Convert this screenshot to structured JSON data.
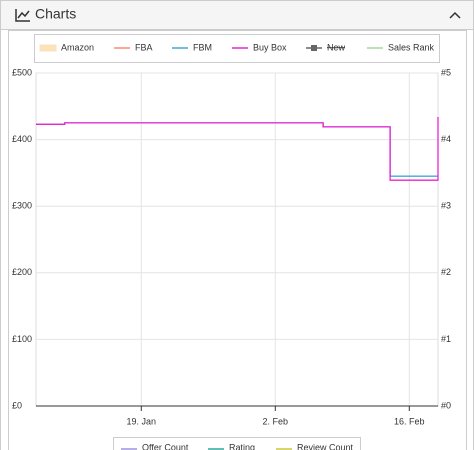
{
  "panel": {
    "title": "Charts"
  },
  "chart_data": {
    "type": "line",
    "step": true,
    "x": [
      "8. Jan",
      "11. Jan",
      "11. Jan",
      "7. Feb",
      "7. Feb",
      "14. Feb",
      "14. Feb",
      "19. Feb",
      "19. Feb"
    ],
    "xlim": [
      "8. Jan",
      "19. Feb"
    ],
    "xticks": [
      "19. Jan",
      "2. Feb",
      "16. Feb"
    ],
    "ylim": [
      0,
      500
    ],
    "yticks": [
      {
        "value": 0,
        "label": "£0"
      },
      {
        "value": 100,
        "label": "£100"
      },
      {
        "value": 200,
        "label": "£200"
      },
      {
        "value": 300,
        "label": "£300"
      },
      {
        "value": 400,
        "label": "£400"
      },
      {
        "value": 500,
        "label": "£500"
      }
    ],
    "y2lim": [
      0,
      5
    ],
    "y2ticks": [
      {
        "value": 0,
        "label": "#0"
      },
      {
        "value": 1,
        "label": "#1"
      },
      {
        "value": 2,
        "label": "#2"
      },
      {
        "value": 3,
        "label": "#3"
      },
      {
        "value": 4,
        "label": "#4"
      },
      {
        "value": 5,
        "label": "#5"
      }
    ],
    "grid": true,
    "series": [
      {
        "name": "Amazon",
        "color": "#f7c97a",
        "values": [
          null,
          null,
          null,
          null,
          null,
          null,
          null,
          null,
          null
        ]
      },
      {
        "name": "FBA",
        "color": "#ff8a6b",
        "values": [
          null,
          null,
          null,
          null,
          null,
          null,
          null,
          null,
          null
        ]
      },
      {
        "name": "FBM",
        "color": "#3fa9dc",
        "values": [
          423,
          423,
          425,
          425,
          419,
          419,
          345,
          345,
          345
        ]
      },
      {
        "name": "Buy Box",
        "color": "#ee22d0",
        "values": [
          423,
          423,
          425,
          425,
          419,
          419,
          339,
          339,
          434
        ]
      },
      {
        "name": "New",
        "color": "#666666",
        "hidden": true,
        "values": [
          null,
          null,
          null,
          null,
          null,
          null,
          null,
          null,
          null
        ]
      },
      {
        "name": "Sales Rank",
        "color": "#a8d5a2",
        "axis": "y2",
        "values": [
          null,
          null,
          null,
          null,
          null,
          null,
          null,
          null,
          null
        ]
      }
    ],
    "series2": [
      {
        "name": "Offer Count",
        "color": "#9e93de"
      },
      {
        "name": "Rating",
        "color": "#2ea89c"
      },
      {
        "name": "Review Count",
        "color": "#c9c93a"
      }
    ]
  }
}
